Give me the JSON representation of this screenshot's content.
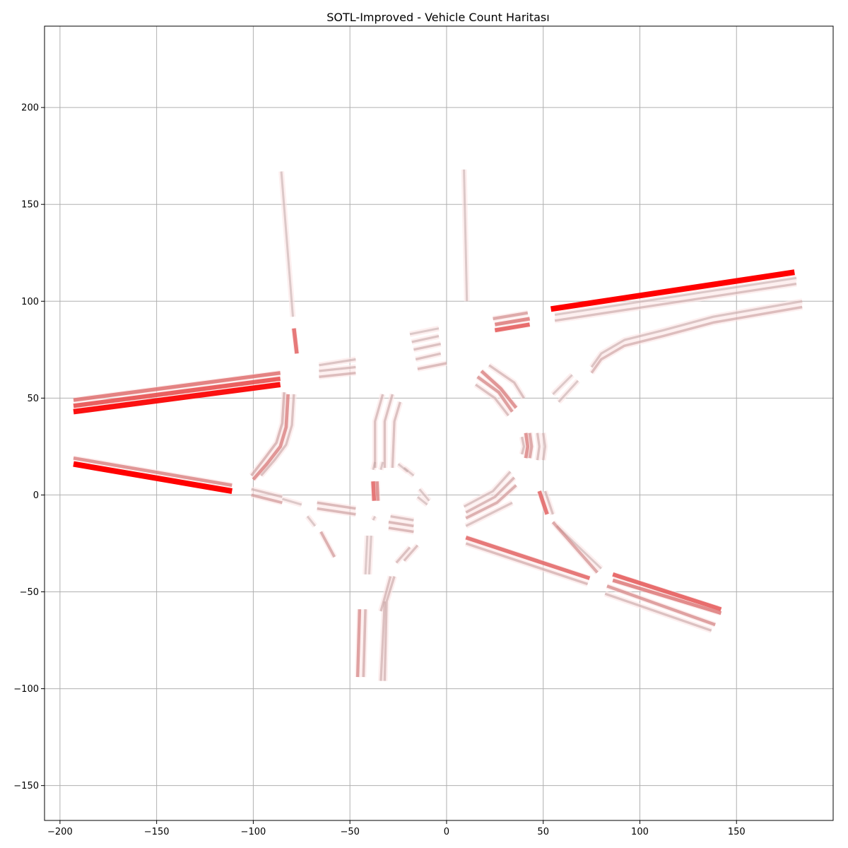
{
  "chart_data": {
    "type": "line",
    "title": "SOTL-Improved - Vehicle Count Haritası",
    "xlabel": "",
    "ylabel": "",
    "xlim": [
      -208,
      200
    ],
    "ylim": [
      -168,
      242
    ],
    "x_ticks": [
      -200,
      -150,
      -100,
      -50,
      0,
      50,
      100,
      150
    ],
    "y_ticks": [
      -150,
      -100,
      -50,
      0,
      50,
      100,
      150,
      200
    ],
    "grid": true,
    "colors": {
      "low": "#b4b4b4",
      "high": "#ff0000",
      "halo": "#fbe4e4"
    },
    "series": [
      {
        "intensity": 0.1,
        "x": [
          -85.5,
          -79.5
        ],
        "y": [
          167,
          92
        ]
      },
      {
        "intensity": 0.55,
        "x": [
          -79,
          -77.5
        ],
        "y": [
          86,
          73
        ]
      },
      {
        "intensity": 0.1,
        "x": [
          9,
          10.5
        ],
        "y": [
          168,
          100
        ]
      },
      {
        "intensity": 0.95,
        "x": [
          -193,
          -86
        ],
        "y": [
          43,
          57
        ]
      },
      {
        "intensity": 0.65,
        "x": [
          -193,
          -86
        ],
        "y": [
          46,
          60
        ]
      },
      {
        "intensity": 0.5,
        "x": [
          -193,
          -86
        ],
        "y": [
          49,
          63
        ]
      },
      {
        "intensity": 1.0,
        "x": [
          -193,
          -111
        ],
        "y": [
          16,
          2
        ]
      },
      {
        "intensity": 0.4,
        "x": [
          -193,
          -111
        ],
        "y": [
          19,
          5
        ]
      },
      {
        "intensity": 1.0,
        "x": [
          54,
          180
        ],
        "y": [
          96,
          115
        ]
      },
      {
        "intensity": 0.15,
        "x": [
          56,
          181
        ],
        "y": [
          90,
          109
        ]
      },
      {
        "intensity": 0.1,
        "x": [
          56,
          181
        ],
        "y": [
          93,
          112
        ]
      },
      {
        "intensity": 0.18,
        "x": [
          75,
          80,
          92,
          112,
          138,
          184
        ],
        "y": [
          63,
          70,
          77,
          82,
          89,
          97
        ]
      },
      {
        "intensity": 0.12,
        "x": [
          75,
          80,
          92,
          112,
          138,
          184
        ],
        "y": [
          66,
          73,
          80,
          85,
          92,
          100
        ]
      },
      {
        "intensity": 0.1,
        "x": [
          58,
          68
        ],
        "y": [
          48,
          59
        ]
      },
      {
        "intensity": 0.1,
        "x": [
          55,
          65
        ],
        "y": [
          52,
          62
        ]
      },
      {
        "intensity": 0.6,
        "x": [
          25,
          43
        ],
        "y": [
          85,
          88
        ]
      },
      {
        "intensity": 0.45,
        "x": [
          25,
          43
        ],
        "y": [
          88,
          91
        ]
      },
      {
        "intensity": 0.3,
        "x": [
          24,
          42
        ],
        "y": [
          91,
          94
        ]
      },
      {
        "intensity": 0.18,
        "x": [
          -66,
          -47
        ],
        "y": [
          61,
          63
        ]
      },
      {
        "intensity": 0.15,
        "x": [
          -66,
          -47
        ],
        "y": [
          64,
          66
        ]
      },
      {
        "intensity": 0.12,
        "x": [
          -66,
          -47
        ],
        "y": [
          67,
          70
        ]
      },
      {
        "intensity": 0.18,
        "x": [
          -15,
          0
        ],
        "y": [
          65,
          68
        ]
      },
      {
        "intensity": 0.15,
        "x": [
          -16,
          -3
        ],
        "y": [
          70,
          73
        ]
      },
      {
        "intensity": 0.15,
        "x": [
          -17,
          -3
        ],
        "y": [
          75,
          78
        ]
      },
      {
        "intensity": 0.12,
        "x": [
          -18,
          -4
        ],
        "y": [
          79,
          82
        ]
      },
      {
        "intensity": 0.1,
        "x": [
          -19,
          -4
        ],
        "y": [
          83,
          86
        ]
      },
      {
        "intensity": 0.15,
        "x": [
          22,
          35,
          40
        ],
        "y": [
          67,
          58,
          50
        ]
      },
      {
        "intensity": 0.4,
        "x": [
          18,
          28,
          36
        ],
        "y": [
          64,
          55,
          45
        ]
      },
      {
        "intensity": 0.35,
        "x": [
          16,
          27,
          34
        ],
        "y": [
          61,
          53,
          43
        ]
      },
      {
        "intensity": 0.15,
        "x": [
          15,
          25,
          32
        ],
        "y": [
          57,
          50,
          41
        ]
      },
      {
        "intensity": 0.15,
        "x": [
          -96,
          -89,
          -83,
          -80,
          -79
        ],
        "y": [
          10,
          18,
          26,
          36,
          52
        ]
      },
      {
        "intensity": 0.4,
        "x": [
          -100,
          -93,
          -86,
          -83,
          -82
        ],
        "y": [
          8,
          16,
          25,
          35,
          52
        ]
      },
      {
        "intensity": 0.2,
        "x": [
          -101,
          -94,
          -88,
          -85,
          -84
        ],
        "y": [
          10,
          19,
          27,
          37,
          53
        ]
      },
      {
        "intensity": 0.15,
        "x": [
          -37,
          -37,
          -33
        ],
        "y": [
          14,
          38,
          52
        ]
      },
      {
        "intensity": 0.15,
        "x": [
          -32,
          -32,
          -28
        ],
        "y": [
          14,
          38,
          52
        ]
      },
      {
        "intensity": 0.15,
        "x": [
          -28,
          -27,
          -24
        ],
        "y": [
          14,
          38,
          48
        ]
      },
      {
        "intensity": 0.15,
        "x": [
          -101,
          -85
        ],
        "y": [
          3,
          -1
        ]
      },
      {
        "intensity": 0.25,
        "x": [
          -101,
          -85
        ],
        "y": [
          0,
          -4
        ]
      },
      {
        "intensity": 0.1,
        "x": [
          -85,
          -75
        ],
        "y": [
          -2,
          -5
        ]
      },
      {
        "intensity": 0.2,
        "x": [
          -67,
          -47
        ],
        "y": [
          -4,
          -7
        ]
      },
      {
        "intensity": 0.2,
        "x": [
          -67,
          -47
        ],
        "y": [
          -7,
          -10
        ]
      },
      {
        "intensity": 0.55,
        "x": [
          -38,
          -37.5
        ],
        "y": [
          7,
          -3
        ]
      },
      {
        "intensity": 0.4,
        "x": [
          -36,
          -35.5
        ],
        "y": [
          7,
          -3
        ]
      },
      {
        "intensity": 0.2,
        "x": [
          -30,
          -17
        ],
        "y": [
          -17,
          -19
        ]
      },
      {
        "intensity": 0.2,
        "x": [
          -30,
          -17
        ],
        "y": [
          -14,
          -16
        ]
      },
      {
        "intensity": 0.15,
        "x": [
          -29,
          -17
        ],
        "y": [
          -11,
          -13
        ]
      },
      {
        "intensity": 0.1,
        "x": [
          -72,
          -68
        ],
        "y": [
          -11,
          -16
        ]
      },
      {
        "intensity": 0.25,
        "x": [
          -65,
          -58
        ],
        "y": [
          -19,
          -32
        ]
      },
      {
        "intensity": 0.15,
        "x": [
          -22,
          -15
        ],
        "y": [
          -34,
          -26
        ]
      },
      {
        "intensity": 0.15,
        "x": [
          -26,
          -19
        ],
        "y": [
          -35,
          -27
        ]
      },
      {
        "intensity": 0.1,
        "x": [
          -42,
          -41
        ],
        "y": [
          -41,
          -21
        ]
      },
      {
        "intensity": 0.1,
        "x": [
          -40,
          -39
        ],
        "y": [
          -41,
          -21
        ]
      },
      {
        "intensity": 0.15,
        "x": [
          -34,
          -32
        ],
        "y": [
          -96,
          -55
        ]
      },
      {
        "intensity": 0.15,
        "x": [
          -32,
          -31,
          -27
        ],
        "y": [
          -96,
          -55,
          -42
        ]
      },
      {
        "intensity": 0.15,
        "x": [
          -34,
          -32,
          -29
        ],
        "y": [
          -60,
          -53,
          -42
        ]
      },
      {
        "intensity": 0.35,
        "x": [
          -46,
          -45
        ],
        "y": [
          -94,
          -59
        ]
      },
      {
        "intensity": 0.2,
        "x": [
          -43,
          -42
        ],
        "y": [
          -94,
          -59
        ]
      },
      {
        "intensity": 0.1,
        "x": [
          -38,
          -37
        ],
        "y": [
          -13,
          -11
        ]
      },
      {
        "intensity": 0.1,
        "x": [
          -38,
          -37
        ],
        "y": [
          13,
          17
        ]
      },
      {
        "intensity": 0.1,
        "x": [
          -34,
          -33
        ],
        "y": [
          13,
          17
        ]
      },
      {
        "intensity": 0.1,
        "x": [
          -25,
          -20
        ],
        "y": [
          16,
          12
        ]
      },
      {
        "intensity": 0.1,
        "x": [
          -22,
          -17
        ],
        "y": [
          14,
          10
        ]
      },
      {
        "intensity": 0.1,
        "x": [
          -15,
          -10
        ],
        "y": [
          -1,
          -5
        ]
      },
      {
        "intensity": 0.1,
        "x": [
          -14,
          -9
        ],
        "y": [
          3,
          -3
        ]
      },
      {
        "intensity": 0.12,
        "x": [
          10,
          34
        ],
        "y": [
          -16,
          -4
        ]
      },
      {
        "intensity": 0.25,
        "x": [
          10,
          26,
          36
        ],
        "y": [
          -12,
          -4,
          5
        ]
      },
      {
        "intensity": 0.2,
        "x": [
          10,
          25,
          35
        ],
        "y": [
          -9,
          -1,
          9
        ]
      },
      {
        "intensity": 0.12,
        "x": [
          9,
          24,
          33
        ],
        "y": [
          -6,
          2,
          12
        ]
      },
      {
        "intensity": 0.15,
        "x": [
          39,
          40,
          39
        ],
        "y": [
          30,
          25,
          21
        ]
      },
      {
        "intensity": 0.4,
        "x": [
          41,
          42,
          41
        ],
        "y": [
          32,
          25,
          19
        ]
      },
      {
        "intensity": 0.3,
        "x": [
          43,
          44,
          43
        ],
        "y": [
          32,
          25,
          19
        ]
      },
      {
        "intensity": 0.15,
        "x": [
          47,
          48,
          47
        ],
        "y": [
          32,
          25,
          18
        ]
      },
      {
        "intensity": 0.12,
        "x": [
          50,
          51,
          50
        ],
        "y": [
          32,
          25,
          18
        ]
      },
      {
        "intensity": 0.55,
        "x": [
          48,
          52
        ],
        "y": [
          2,
          -10
        ]
      },
      {
        "intensity": 0.15,
        "x": [
          51,
          55
        ],
        "y": [
          2,
          -10
        ]
      },
      {
        "intensity": 0.55,
        "x": [
          10,
          74
        ],
        "y": [
          -22,
          -43
        ]
      },
      {
        "intensity": 0.18,
        "x": [
          10,
          73
        ],
        "y": [
          -25,
          -46
        ]
      },
      {
        "intensity": 0.1,
        "x": [
          57,
          80
        ],
        "y": [
          -16,
          -38
        ]
      },
      {
        "intensity": 0.3,
        "x": [
          55,
          78
        ],
        "y": [
          -14,
          -40
        ]
      },
      {
        "intensity": 0.6,
        "x": [
          86,
          142
        ],
        "y": [
          -41,
          -59
        ]
      },
      {
        "intensity": 0.45,
        "x": [
          86,
          142
        ],
        "y": [
          -44,
          -61
        ]
      },
      {
        "intensity": 0.35,
        "x": [
          83,
          139
        ],
        "y": [
          -47,
          -67
        ]
      },
      {
        "intensity": 0.15,
        "x": [
          82,
          137
        ],
        "y": [
          -51,
          -70
        ]
      }
    ]
  }
}
